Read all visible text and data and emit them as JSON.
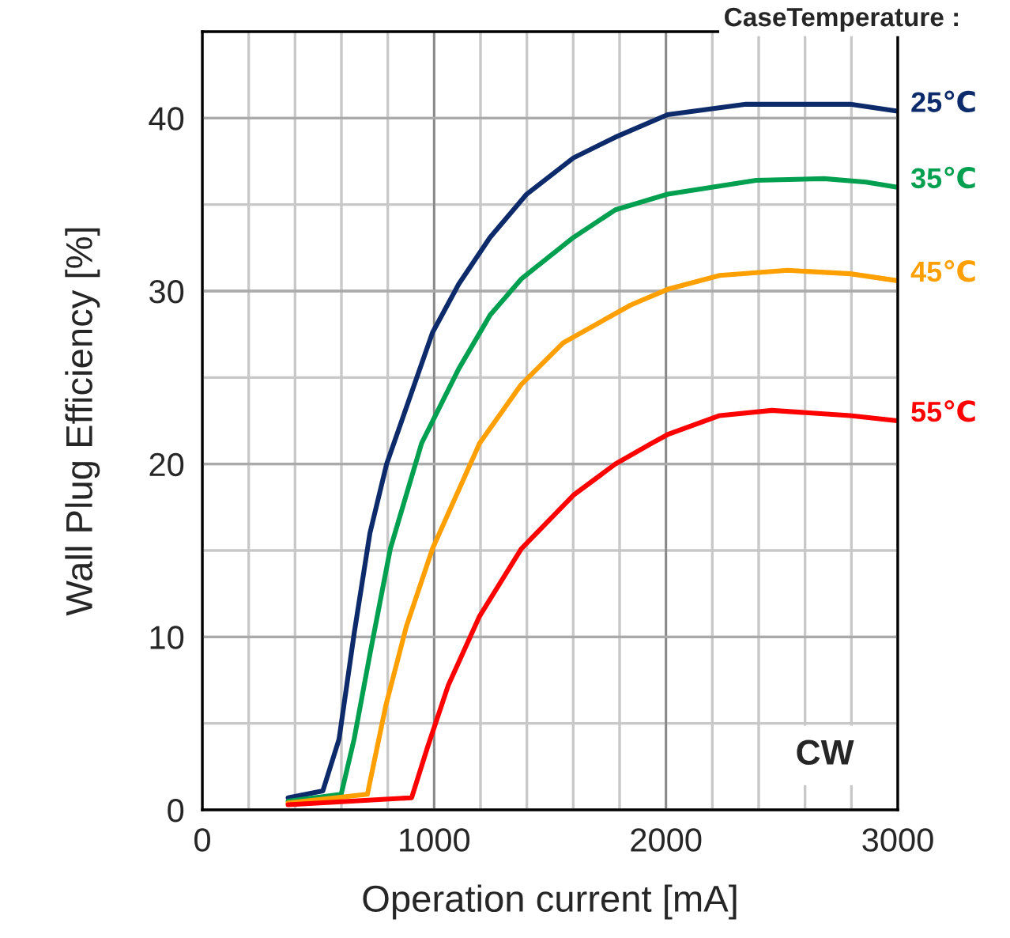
{
  "chart_data": {
    "type": "line",
    "xlabel": "Operation current [mA]",
    "ylabel": "Wall Plug Efficiency [%]",
    "legend_title": "CaseTemperature :",
    "annotations": [
      "CW"
    ],
    "xlim": [
      0,
      3000
    ],
    "ylim": [
      0,
      45
    ],
    "xticks": [
      0,
      {
        "value": 200,
        "label": null
      },
      {
        "value": 400,
        "label": null
      },
      {
        "value": 600,
        "label": null
      },
      {
        "value": 800,
        "label": null
      },
      1000,
      {
        "value": 1200,
        "label": null
      },
      {
        "value": 1400,
        "label": null
      },
      {
        "value": 1600,
        "label": null
      },
      {
        "value": 1800,
        "label": null
      },
      2000,
      {
        "value": 2200,
        "label": null
      },
      {
        "value": 2400,
        "label": null
      },
      {
        "value": 2600,
        "label": null
      },
      {
        "value": 2800,
        "label": null
      },
      3000
    ],
    "yticks": [
      0,
      {
        "value": 5,
        "label": null
      },
      10,
      {
        "value": 15,
        "label": null
      },
      20,
      {
        "value": 25,
        "label": null
      },
      30,
      {
        "value": 35,
        "label": null
      },
      40
    ],
    "grid": true,
    "legend": "right",
    "marker": "none",
    "line_style": "solid",
    "series": [
      {
        "name": "25℃",
        "color": "#0d2a6b",
        "x": [
          370,
          520,
          590,
          655,
          723,
          795,
          993,
          1106,
          1241,
          1399,
          1601,
          1782,
          2007,
          2345,
          2795,
          2998
        ],
        "values": [
          0.7,
          1.1,
          4.1,
          10.2,
          16.0,
          20.0,
          27.6,
          30.4,
          33.1,
          35.6,
          37.7,
          38.9,
          40.2,
          40.8,
          40.8,
          40.4
        ]
      },
      {
        "name": "35℃",
        "color": "#00a050",
        "x": [
          370,
          599,
          655,
          723,
          811,
          946,
          1106,
          1241,
          1376,
          1601,
          1782,
          2007,
          2389,
          2682,
          2863,
          2998
        ],
        "values": [
          0.5,
          0.9,
          4.1,
          9.0,
          15.1,
          21.2,
          25.5,
          28.6,
          30.7,
          33.1,
          34.7,
          35.6,
          36.4,
          36.5,
          36.3,
          36.0
        ]
      },
      {
        "name": "45℃",
        "color": "#ffa000",
        "x": [
          370,
          712,
          791,
          880,
          993,
          1196,
          1376,
          1556,
          1849,
          2007,
          2232,
          2525,
          2795,
          2998
        ],
        "values": [
          0.4,
          0.9,
          6.0,
          10.6,
          15.1,
          21.2,
          24.6,
          27.0,
          29.2,
          30.1,
          30.9,
          31.2,
          31.0,
          30.6
        ]
      },
      {
        "name": "55℃",
        "color": "#ff0000",
        "x": [
          370,
          903,
          971,
          1061,
          1196,
          1376,
          1601,
          1782,
          1939,
          2007,
          2232,
          2457,
          2795,
          2998
        ],
        "values": [
          0.3,
          0.7,
          3.6,
          7.2,
          11.2,
          15.1,
          18.2,
          20.0,
          21.2,
          21.7,
          22.8,
          23.1,
          22.8,
          22.5
        ]
      }
    ]
  }
}
